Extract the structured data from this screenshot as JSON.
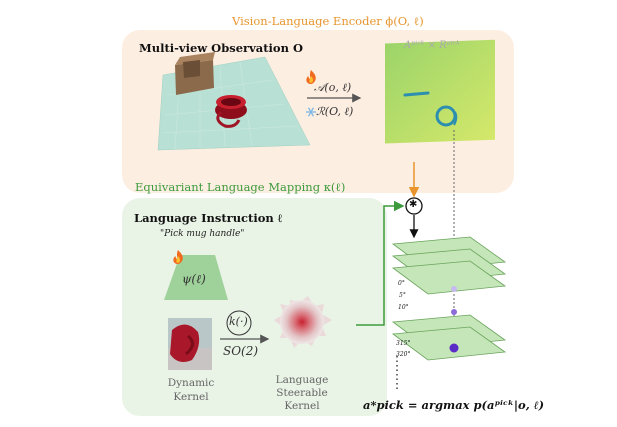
{
  "encoder": {
    "title": "Vision-Language Encoder ϕ(O, ℓ)",
    "obs_label": "Multi-view Observation O",
    "attn_label": "𝒜(o, ℓ)",
    "rot_label": "ℛ(O, ℓ)",
    "map_label": "Aᵖⁱᶜᵏ × Rᵖⁱᶜᵏ"
  },
  "mapping": {
    "title": "Equivariant Language Mapping κ(ℓ)",
    "instruction_label": "Language Instruction ℓ",
    "instruction_text": "\"Pick mug handle\"",
    "psi_label": "ψ(ℓ)",
    "k_label": "k(·)",
    "so2_label": "SO(2)",
    "dynamic_kernel": "Dynamic Kernel",
    "steerable_kernel": "Language Steerable Kernel"
  },
  "output": {
    "conv_symbol": "✱",
    "angles_top": [
      "0°",
      "5°",
      "10°"
    ],
    "angles_bottom": [
      "315°",
      "320°"
    ],
    "equation": "a*pick = argmax p(aᵖⁱᶜᵏ|o, ℓ)"
  },
  "colors": {
    "orange_panel": "#fdeee2",
    "green_panel": "#e9f3e6",
    "orange_accent": "#e8952e",
    "green_accent": "#3d9b3d",
    "layer_fill": "#c4e6b8",
    "peak": "#5b2bc8"
  }
}
